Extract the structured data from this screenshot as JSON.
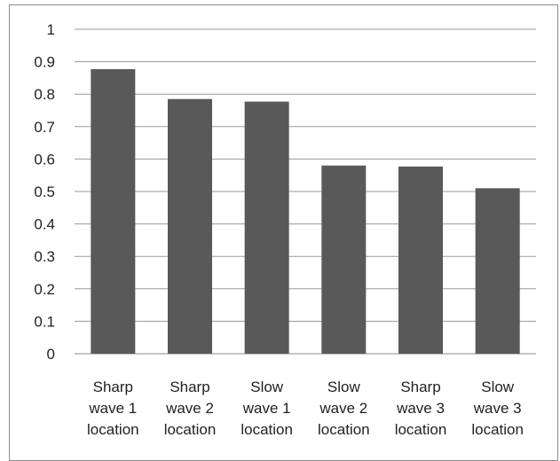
{
  "chart_data": {
    "type": "bar",
    "categories": [
      [
        "Sharp",
        "wave 1",
        "location"
      ],
      [
        "Sharp",
        "wave 2",
        "location"
      ],
      [
        "Slow",
        "wave 1",
        "location"
      ],
      [
        "Slow",
        "wave 2",
        "location"
      ],
      [
        "Sharp",
        "wave 3",
        "location"
      ],
      [
        "Slow",
        "wave 3",
        "location"
      ]
    ],
    "values": [
      0.877,
      0.785,
      0.777,
      0.58,
      0.577,
      0.51
    ],
    "ylim": [
      0,
      1
    ],
    "yticks": [
      "0",
      "0.1",
      "0.2",
      "0.3",
      "0.4",
      "0.5",
      "0.6",
      "0.7",
      "0.8",
      "0.9",
      "1"
    ],
    "grid": true,
    "bar_color": "#595959",
    "title": "",
    "xlabel": "",
    "ylabel": ""
  }
}
